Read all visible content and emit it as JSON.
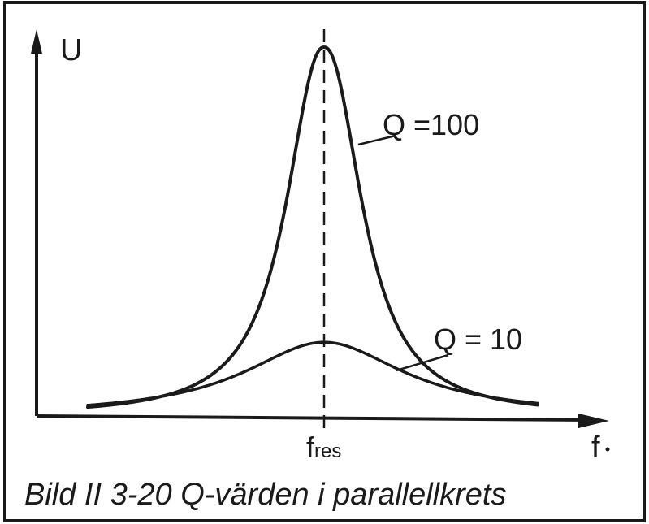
{
  "diagram": {
    "axis_y_label": "U",
    "axis_x_label": "f",
    "resonance_label_main": "f",
    "resonance_label_sub": "res",
    "caption": "Bild II 3-20  Q-värden i parallellkrets",
    "curves": [
      {
        "name": "high-q",
        "label": "Q =100",
        "q": 100,
        "relative_peak": 1.0
      },
      {
        "name": "low-q",
        "label": "Q = 10",
        "q": 10,
        "relative_peak": 0.2
      }
    ],
    "colors": {
      "ink": "#1a1a1a",
      "paper": "#ffffff"
    }
  }
}
